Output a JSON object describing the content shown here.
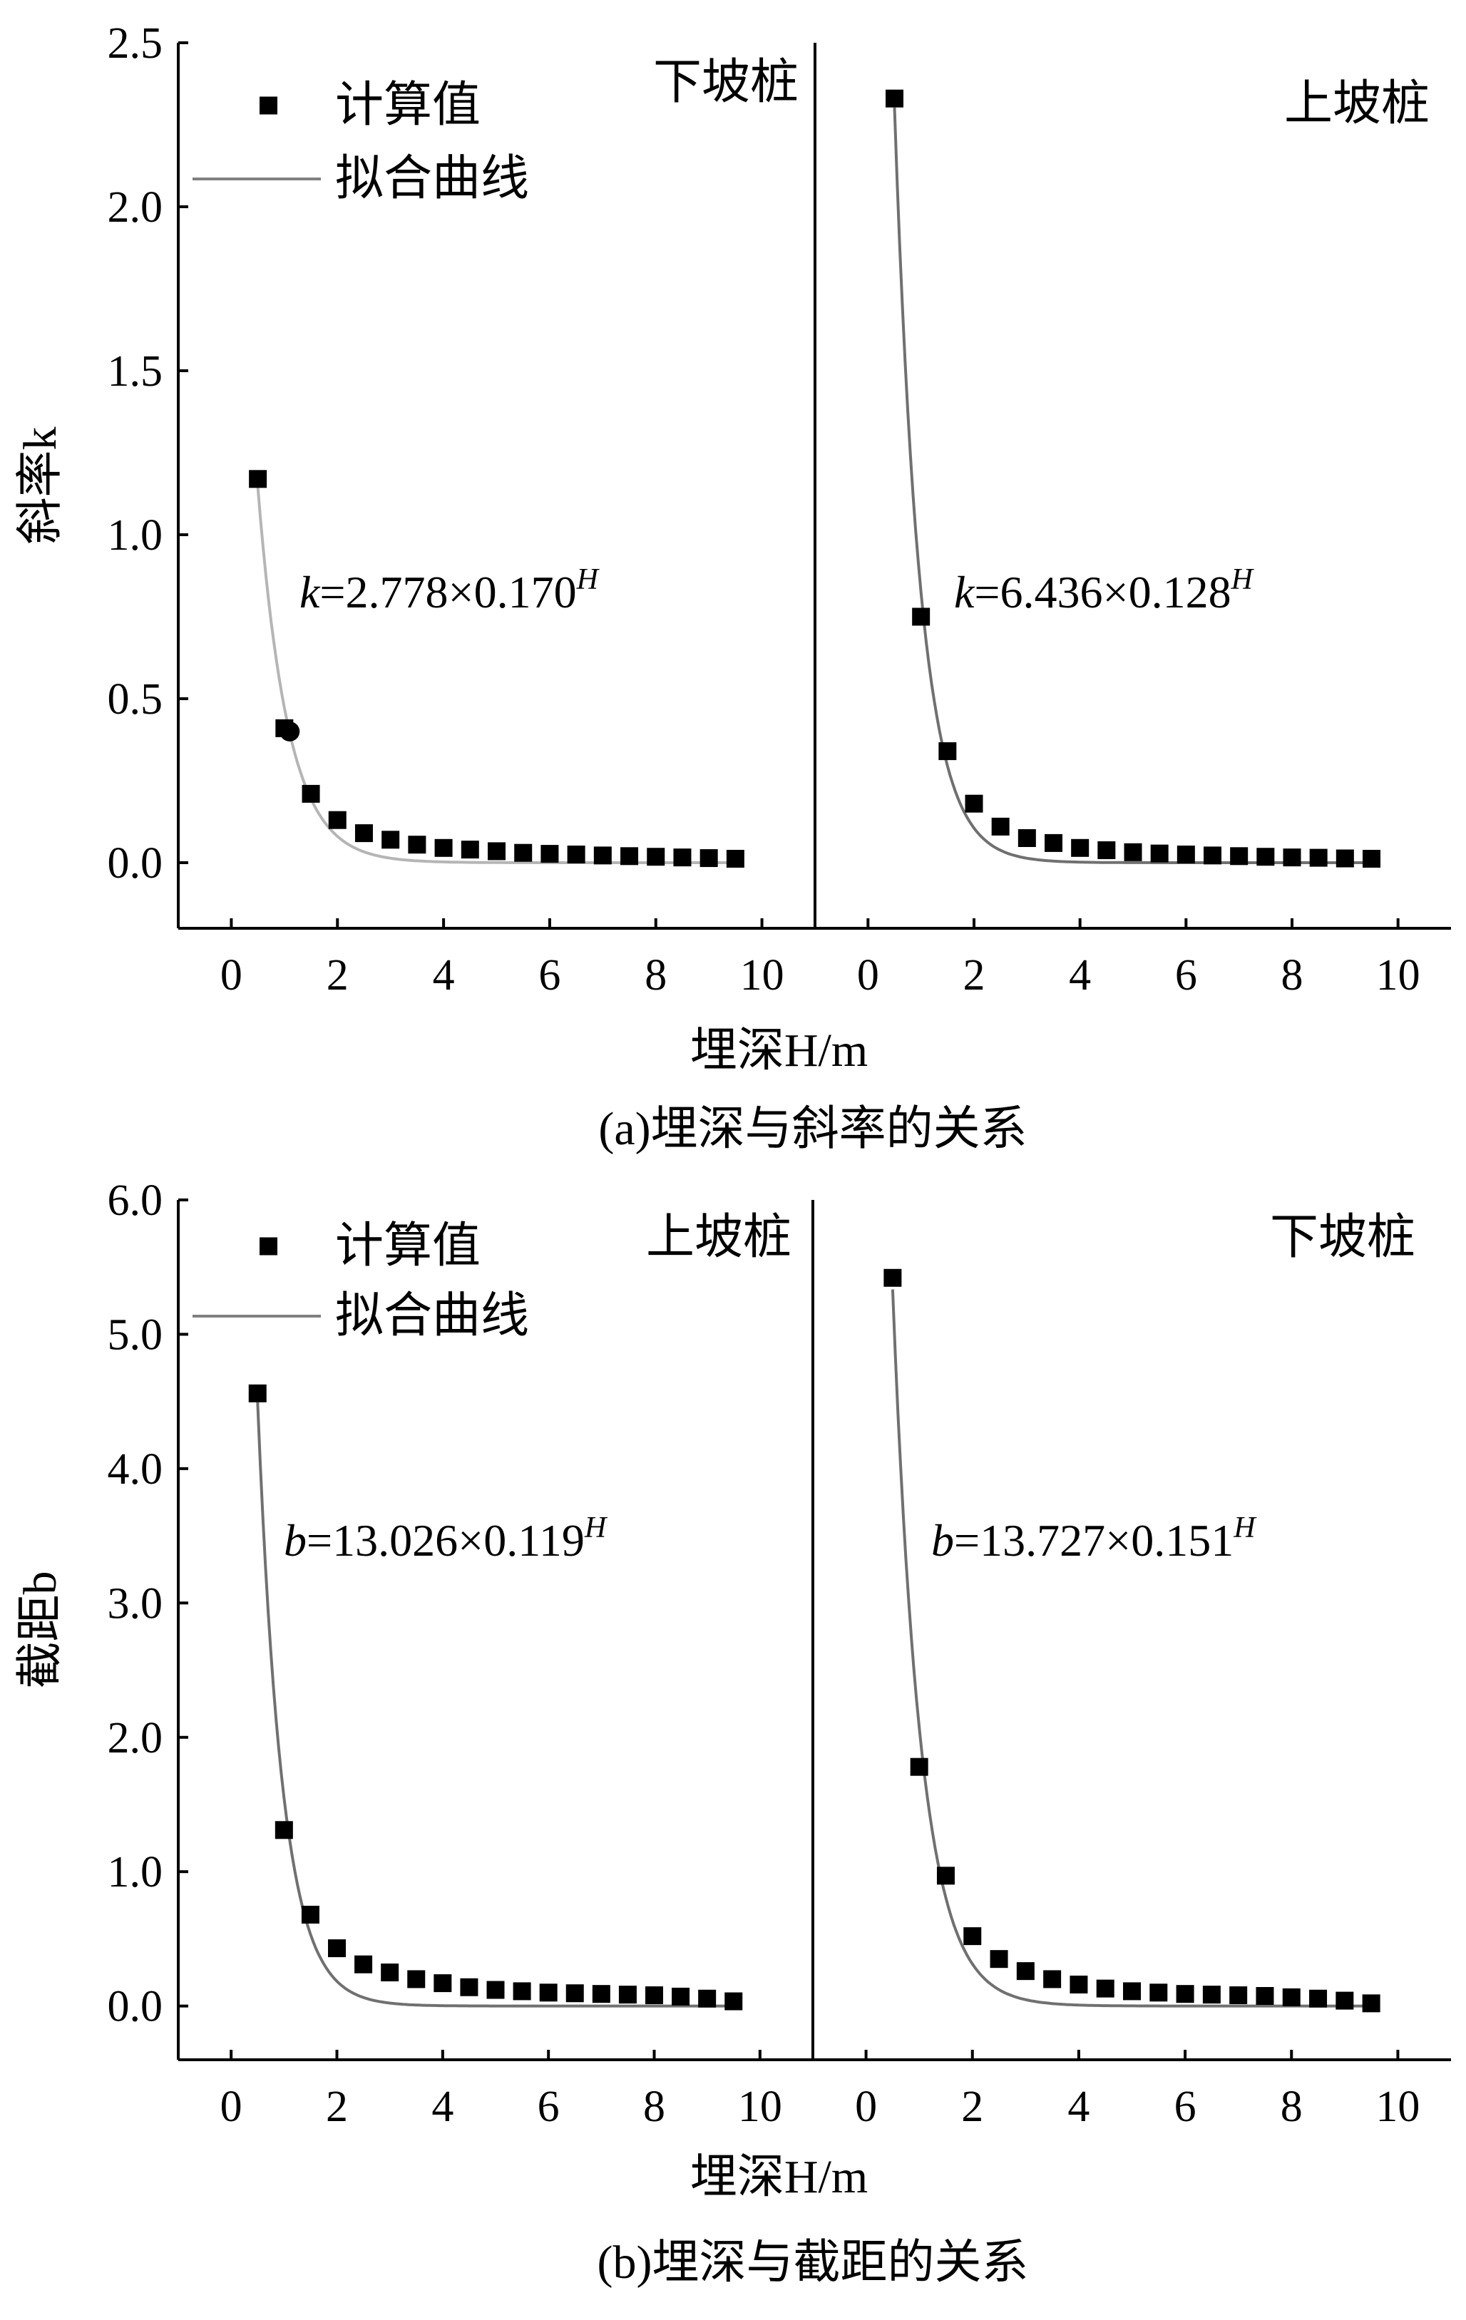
{
  "chart_data": [
    {
      "type": "scatter",
      "title": "(a)埋深与斜率的关系",
      "ylabel": "斜率k",
      "xlabel": "埋深H/m",
      "ylim": [
        -0.2,
        2.5
      ],
      "yticks": [
        "0.0",
        "0.5",
        "1.0",
        "1.5",
        "2.0",
        "2.5"
      ],
      "yticks_values": [
        0,
        0.5,
        1.0,
        1.5,
        2.0,
        2.5
      ],
      "xlim": [
        -1,
        11
      ],
      "xticks": [
        "0",
        "2",
        "4",
        "6",
        "8",
        "10"
      ],
      "xticks_values": [
        0,
        2,
        4,
        6,
        8,
        10
      ],
      "legend": {
        "points": "计算值",
        "curve": "拟合曲线"
      },
      "panels": [
        {
          "label": "下坡桩",
          "equation": {
            "var": "k",
            "rest": "=2.778×0.170",
            "sup": "H"
          },
          "fit": {
            "a": 2.778,
            "base": 0.17
          },
          "curve_color": "#b5b5b5",
          "points": [
            [
              0.5,
              1.17
            ],
            [
              1.0,
              0.41
            ],
            [
              1.5,
              0.21
            ],
            [
              2.0,
              0.13
            ],
            [
              2.5,
              0.09
            ],
            [
              3.0,
              0.07
            ],
            [
              3.5,
              0.055
            ],
            [
              4.0,
              0.045
            ],
            [
              4.5,
              0.04
            ],
            [
              5.0,
              0.035
            ],
            [
              5.5,
              0.03
            ],
            [
              6.0,
              0.027
            ],
            [
              6.5,
              0.025
            ],
            [
              7.0,
              0.022
            ],
            [
              7.5,
              0.02
            ],
            [
              8.0,
              0.018
            ],
            [
              8.5,
              0.016
            ],
            [
              9.0,
              0.014
            ],
            [
              9.5,
              0.012
            ]
          ],
          "marker_circle": [
            1.1,
            0.4
          ]
        },
        {
          "label": "上坡桩",
          "equation": {
            "var": "k",
            "rest": "=6.436×0.128",
            "sup": "H"
          },
          "fit": {
            "a": 6.436,
            "base": 0.128
          },
          "curve_color": "#707070",
          "points": [
            [
              0.5,
              2.33
            ],
            [
              1.0,
              0.75
            ],
            [
              1.5,
              0.34
            ],
            [
              2.0,
              0.18
            ],
            [
              2.5,
              0.11
            ],
            [
              3.0,
              0.075
            ],
            [
              3.5,
              0.06
            ],
            [
              4.0,
              0.045
            ],
            [
              4.5,
              0.038
            ],
            [
              5.0,
              0.032
            ],
            [
              5.5,
              0.028
            ],
            [
              6.0,
              0.025
            ],
            [
              6.5,
              0.022
            ],
            [
              7.0,
              0.02
            ],
            [
              7.5,
              0.018
            ],
            [
              8.0,
              0.016
            ],
            [
              8.5,
              0.015
            ],
            [
              9.0,
              0.013
            ],
            [
              9.5,
              0.012
            ]
          ]
        }
      ]
    },
    {
      "type": "scatter",
      "title": "(b)埋深与截距的关系",
      "ylabel": "截距b",
      "xlabel": "埋深H/m",
      "ylim": [
        -0.4,
        6.0
      ],
      "yticks": [
        "0.0",
        "1.0",
        "2.0",
        "3.0",
        "4.0",
        "5.0",
        "6.0"
      ],
      "yticks_values": [
        0,
        1,
        2,
        3,
        4,
        5,
        6
      ],
      "xlim": [
        -1,
        11
      ],
      "xticks": [
        "0",
        "2",
        "4",
        "6",
        "8",
        "10"
      ],
      "xticks_values": [
        0,
        2,
        4,
        6,
        8,
        10
      ],
      "legend": {
        "points": "计算值",
        "curve": "拟合曲线"
      },
      "panels": [
        {
          "label": "上坡桩",
          "equation": {
            "var": "b",
            "rest": "=13.026×0.119",
            "sup": "H"
          },
          "fit": {
            "a": 13.026,
            "base": 0.119
          },
          "curve_color": "#707070",
          "points": [
            [
              0.5,
              4.56
            ],
            [
              1.0,
              1.31
            ],
            [
              1.5,
              0.68
            ],
            [
              2.0,
              0.43
            ],
            [
              2.5,
              0.31
            ],
            [
              3.0,
              0.25
            ],
            [
              3.5,
              0.2
            ],
            [
              4.0,
              0.17
            ],
            [
              4.5,
              0.14
            ],
            [
              5.0,
              0.12
            ],
            [
              5.5,
              0.11
            ],
            [
              6.0,
              0.1
            ],
            [
              6.5,
              0.095
            ],
            [
              7.0,
              0.09
            ],
            [
              7.5,
              0.085
            ],
            [
              8.0,
              0.08
            ],
            [
              8.5,
              0.07
            ],
            [
              9.0,
              0.055
            ],
            [
              9.5,
              0.035
            ]
          ]
        },
        {
          "label": "下坡桩",
          "equation": {
            "var": "b",
            "rest": "=13.727×0.151",
            "sup": "H"
          },
          "fit": {
            "a": 13.727,
            "base": 0.151
          },
          "curve_color": "#707070",
          "points": [
            [
              0.5,
              5.42
            ],
            [
              1.0,
              1.78
            ],
            [
              1.5,
              0.97
            ],
            [
              2.0,
              0.52
            ],
            [
              2.5,
              0.35
            ],
            [
              3.0,
              0.26
            ],
            [
              3.5,
              0.2
            ],
            [
              4.0,
              0.16
            ],
            [
              4.5,
              0.13
            ],
            [
              5.0,
              0.11
            ],
            [
              5.5,
              0.1
            ],
            [
              6.0,
              0.09
            ],
            [
              6.5,
              0.085
            ],
            [
              7.0,
              0.08
            ],
            [
              7.5,
              0.075
            ],
            [
              8.0,
              0.065
            ],
            [
              8.5,
              0.055
            ],
            [
              9.0,
              0.04
            ],
            [
              9.5,
              0.02
            ]
          ]
        }
      ]
    }
  ]
}
